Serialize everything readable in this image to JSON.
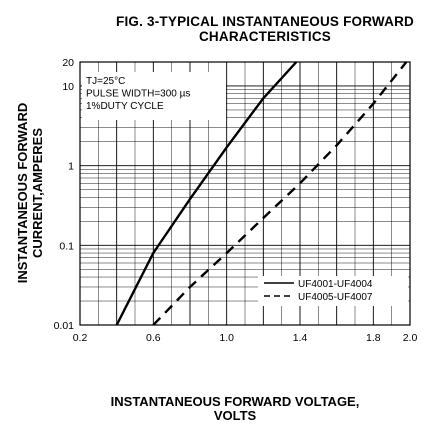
{
  "chart_data": {
    "type": "line",
    "title": [
      "FIG. 3-TYPICAL INSTANTANEOUS FORWARD",
      "CHARACTERISTICS"
    ],
    "xlabel": [
      "INSTANTANEOUS FORWARD VOLTAGE,",
      "VOLTS"
    ],
    "ylabel": [
      "INSTANTANEOUS FORWARD",
      "CURRENT,AMPERES"
    ],
    "xlim": [
      0.2,
      2.0
    ],
    "ylim": [
      0.01,
      20
    ],
    "yscale": "log",
    "grid": true,
    "x_ticks": [
      {
        "value": 0.2,
        "label": "0.2"
      },
      {
        "value": 0.6,
        "label": "0.6"
      },
      {
        "value": 1.0,
        "label": "1.0"
      },
      {
        "value": 1.4,
        "label": "1.4"
      },
      {
        "value": 1.8,
        "label": "1.8"
      },
      {
        "value": 2.0,
        "label": "2.0"
      }
    ],
    "y_ticks": [
      {
        "value": 0.01,
        "label": "0.01"
      },
      {
        "value": 0.1,
        "label": "0.1"
      },
      {
        "value": 1,
        "label": "1"
      },
      {
        "value": 10,
        "label": "10"
      },
      {
        "value": 20,
        "label": "20"
      }
    ],
    "annotation": [
      "TJ=25°C",
      "PULSE WIDTH=300 µs",
      "1%DUTY CYCLE"
    ],
    "legend_position": "bottom-right",
    "series": [
      {
        "name": "UF4001-UF4004",
        "style": "solid",
        "x": [
          0.4,
          0.6,
          0.8,
          1.0,
          1.2,
          1.38
        ],
        "y": [
          0.01,
          0.08,
          0.38,
          1.7,
          7.0,
          20
        ]
      },
      {
        "name": "UF4005-UF4007",
        "style": "dashed",
        "x": [
          0.6,
          0.8,
          1.0,
          1.2,
          1.4,
          1.6,
          1.8,
          1.98
        ],
        "y": [
          0.01,
          0.03,
          0.08,
          0.22,
          0.6,
          1.8,
          6.0,
          20
        ]
      }
    ]
  }
}
